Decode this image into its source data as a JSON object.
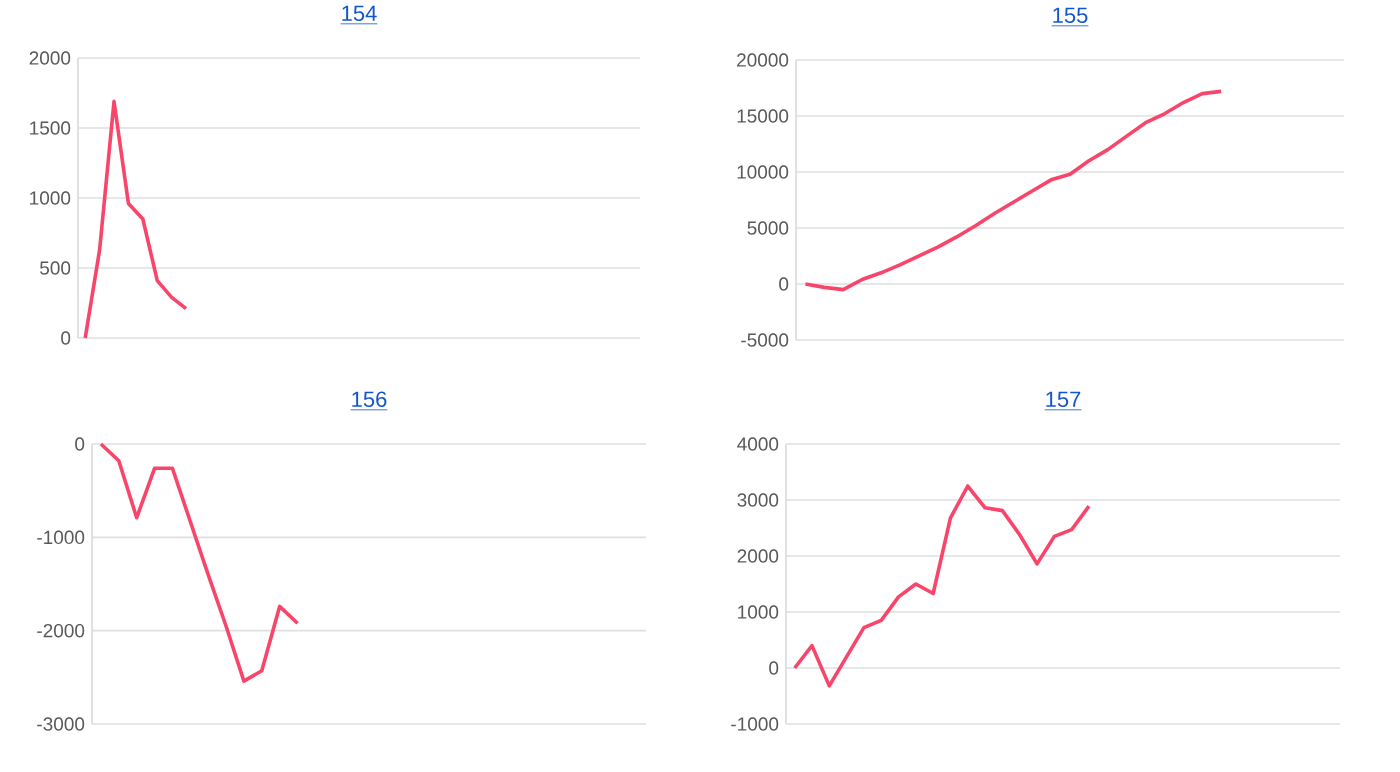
{
  "chart_data": [
    {
      "type": "line",
      "title": "154",
      "categories": [
        null,
        null,
        null,
        null,
        null,
        null,
        null,
        null,
        null,
        null,
        null,
        null,
        null,
        null,
        null,
        null,
        null,
        null,
        null,
        null,
        null,
        null,
        null,
        null,
        null,
        null,
        null,
        null,
        null,
        null,
        null,
        null,
        null,
        null,
        null,
        null,
        null,
        null,
        null
      ],
      "series": [
        {
          "color": "#f8456a",
          "values": [
            0,
            630,
            1690,
            960,
            850,
            410,
            290,
            210,
            null,
            null,
            null,
            null,
            null,
            null,
            null,
            null,
            null,
            null,
            null,
            null,
            null,
            null,
            null,
            null,
            null,
            null,
            null,
            null,
            null,
            null,
            null,
            null,
            null,
            null,
            null,
            null,
            null,
            null,
            null
          ]
        }
      ],
      "ylim": [
        0,
        2000
      ],
      "yticks": [
        0,
        500,
        1000,
        1500,
        2000
      ],
      "grid": "y",
      "tick_labels": "y"
    },
    {
      "type": "line",
      "title": "155",
      "categories": [
        null,
        null,
        null,
        null,
        null,
        null,
        null,
        null,
        null,
        null,
        null,
        null,
        null,
        null,
        null,
        null,
        null,
        null,
        null,
        null,
        null,
        null,
        null,
        null,
        null,
        null,
        null,
        null,
        null
      ],
      "series": [
        {
          "color": "#f8456a",
          "values": [
            0,
            -300,
            -500,
            400,
            1000,
            1700,
            2500,
            3300,
            4200,
            5200,
            6300,
            7300,
            8300,
            9300,
            9800,
            11000,
            12000,
            13200,
            14400,
            15200,
            16200,
            17000,
            17200,
            null,
            null,
            null,
            null,
            null,
            null
          ]
        }
      ],
      "ylim": [
        -5000,
        20000
      ],
      "yticks": [
        -5000,
        0,
        5000,
        10000,
        15000,
        20000
      ],
      "grid": "y",
      "tick_labels": "y"
    },
    {
      "type": "line",
      "title": "156",
      "categories": [
        null,
        null,
        null,
        null,
        null,
        null,
        null,
        null,
        null,
        null,
        null,
        null,
        null,
        null,
        null,
        null,
        null,
        null,
        null,
        null,
        null,
        null,
        null,
        null,
        null,
        null,
        null,
        null,
        null,
        null,
        null
      ],
      "series": [
        {
          "color": "#f8456a",
          "values": [
            0,
            -180,
            -790,
            -260,
            -260,
            -830,
            -1400,
            -1950,
            -2540,
            -2430,
            -1740,
            -1920,
            null,
            null,
            null,
            null,
            null,
            null,
            null,
            null,
            null,
            null,
            null,
            null,
            null,
            null,
            null,
            null,
            null,
            null,
            null
          ]
        }
      ],
      "ylim": [
        -3000,
        0
      ],
      "yticks": [
        -3000,
        -2000,
        -1000,
        0
      ],
      "grid": "y",
      "tick_labels": "y"
    },
    {
      "type": "line",
      "title": "157",
      "categories": [
        null,
        null,
        null,
        null,
        null,
        null,
        null,
        null,
        null,
        null,
        null,
        null,
        null,
        null,
        null,
        null,
        null,
        null,
        null,
        null,
        null,
        null,
        null,
        null,
        null,
        null,
        null,
        null,
        null,
        null,
        null,
        null
      ],
      "series": [
        {
          "color": "#f8456a",
          "values": [
            0,
            400,
            -320,
            200,
            720,
            850,
            1270,
            1500,
            1330,
            2680,
            3250,
            2860,
            2810,
            2380,
            1860,
            2350,
            2470,
            2890,
            null,
            null,
            null,
            null,
            null,
            null,
            null,
            null,
            null,
            null,
            null,
            null,
            null,
            null
          ]
        }
      ],
      "ylim": [
        -1000,
        4000
      ],
      "yticks": [
        -1000,
        0,
        1000,
        2000,
        3000,
        4000
      ],
      "grid": "y",
      "tick_labels": "y"
    }
  ]
}
